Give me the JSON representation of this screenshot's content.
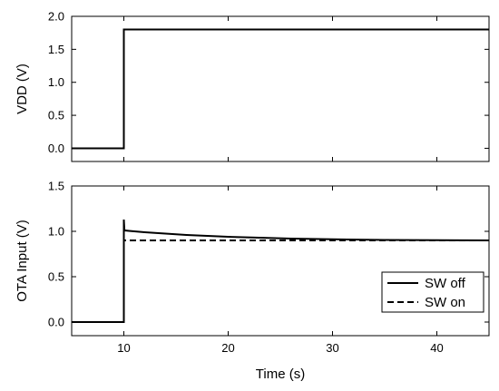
{
  "chart_data": [
    {
      "type": "line",
      "title": "",
      "xlabel": "",
      "ylabel": "VDD (V)",
      "xlim": [
        5,
        45
      ],
      "ylim": [
        -0.2,
        2.0
      ],
      "xticks": [
        10,
        20,
        30,
        40
      ],
      "yticks": [
        0.0,
        0.5,
        1.0,
        1.5,
        2.0
      ],
      "ytick_labels": [
        "0.0",
        "0.5",
        "1.0",
        "1.5",
        "2.0"
      ],
      "grid": false,
      "series": [
        {
          "style": "solid",
          "color": "#000000",
          "x": [
            5,
            10,
            10,
            45
          ],
          "y": [
            0.0,
            0.0,
            1.8,
            1.8
          ]
        }
      ]
    },
    {
      "type": "line",
      "title": "",
      "xlabel": "Time (s)",
      "ylabel": "OTA Input (V)",
      "xlim": [
        5,
        45
      ],
      "ylim": [
        -0.15,
        1.5
      ],
      "xticks": [
        10,
        20,
        30,
        40
      ],
      "xtick_labels": [
        "10",
        "20",
        "30",
        "40"
      ],
      "yticks": [
        0.0,
        0.5,
        1.0,
        1.5
      ],
      "ytick_labels": [
        "0.0",
        "0.5",
        "1.0",
        "1.5"
      ],
      "grid": false,
      "legend_position": "bottom-right",
      "series": [
        {
          "name": "SW off",
          "style": "solid",
          "color": "#000000",
          "x": [
            5,
            10,
            10,
            10.05,
            10.1,
            10.5,
            12,
            14,
            16,
            18,
            20,
            23,
            26,
            30,
            35,
            40,
            45
          ],
          "y": [
            0.0,
            0.0,
            1.13,
            1.02,
            1.01,
            1.005,
            0.99,
            0.975,
            0.96,
            0.95,
            0.94,
            0.93,
            0.92,
            0.912,
            0.905,
            0.902,
            0.9
          ]
        },
        {
          "name": "SW on",
          "style": "dashed",
          "color": "#000000",
          "x": [
            5,
            10,
            10,
            45
          ],
          "y": [
            0.0,
            0.0,
            0.9,
            0.9
          ]
        }
      ]
    }
  ]
}
